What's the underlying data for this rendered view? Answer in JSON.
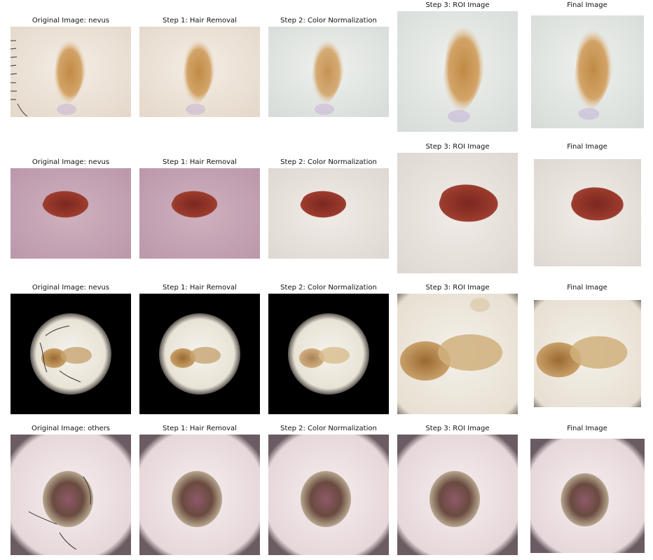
{
  "figure": {
    "rows": [
      {
        "label": "nevus",
        "titles": [
          "Original Image: nevus",
          "Step 1: Hair Removal",
          "Step 2: Color Normalization",
          "Step 3: ROI Image",
          "Final Image"
        ]
      },
      {
        "label": "nevus",
        "titles": [
          "Original Image: nevus",
          "Step 1: Hair Removal",
          "Step 2: Color Normalization",
          "Step 3: ROI Image",
          "Final Image"
        ]
      },
      {
        "label": "nevus",
        "titles": [
          "Original Image: nevus",
          "Step 1: Hair Removal",
          "Step 2: Color Normalization",
          "Step 3: ROI Image",
          "Final Image"
        ]
      },
      {
        "label": "others",
        "titles": [
          "Original Image: others",
          "Step 1: Hair Removal",
          "Step 2: Color Normalization",
          "Step 3: ROI Image",
          "Final Image"
        ]
      }
    ]
  },
  "colors": {
    "background": "#ffffff",
    "skin_row1": "#efe8df",
    "lesion_row1": "#c08a45",
    "skin_row2": "#c9a7b6",
    "lesion_row2": "#8a2a22",
    "skin_row3": "#f1eee6",
    "lesion_row3": "#b98a4c",
    "skin_row4": "#f0e6e8",
    "lesion_row4": "#6a4a3f"
  }
}
